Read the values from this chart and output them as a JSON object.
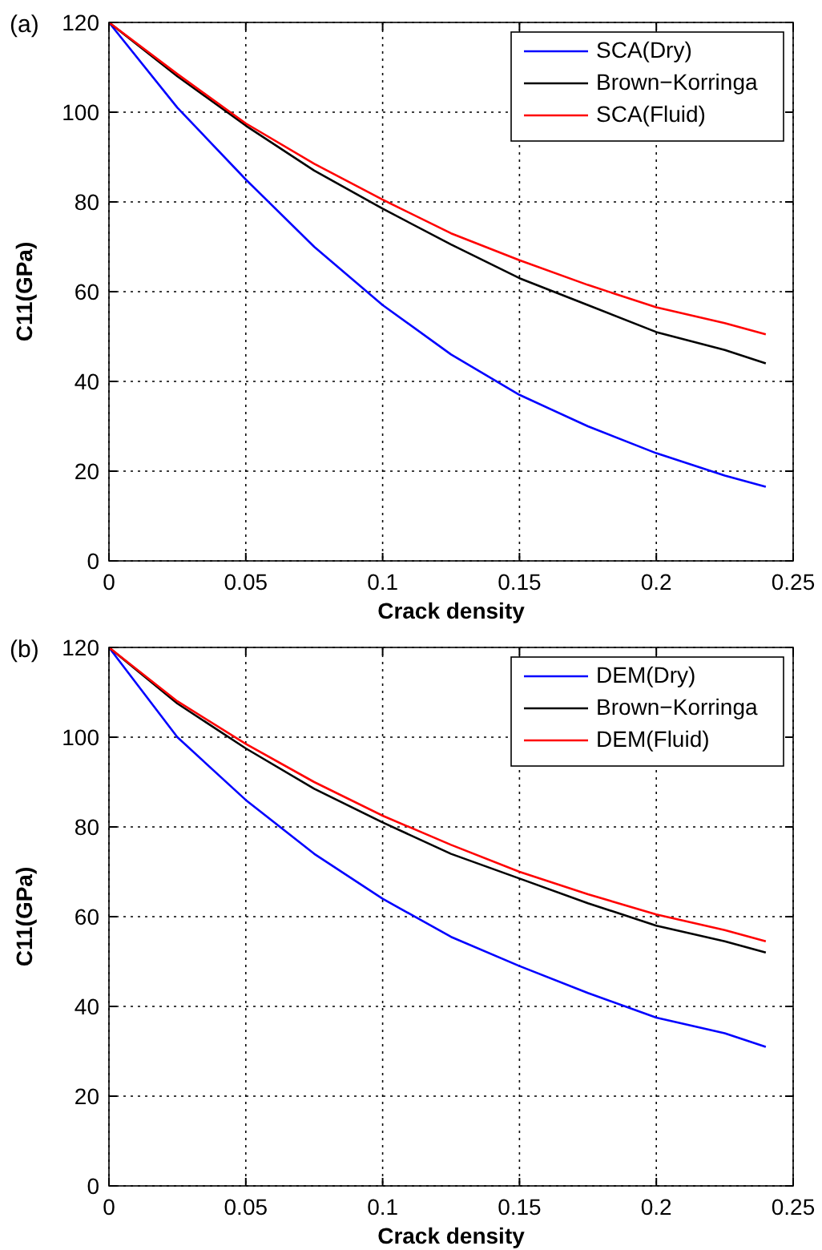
{
  "chart_data": [
    {
      "type": "line",
      "annotations": [
        "(a)"
      ],
      "xlabel": "Crack density",
      "ylabel": "C11(GPa)",
      "x": [
        0,
        0.025,
        0.05,
        0.075,
        0.1,
        0.125,
        0.15,
        0.175,
        0.2,
        0.225,
        0.24
      ],
      "xlim": [
        0,
        0.25
      ],
      "xticks": [
        0,
        0.05,
        0.1,
        0.15,
        0.2,
        0.25
      ],
      "ylim": [
        0,
        120
      ],
      "yticks": [
        0,
        20,
        40,
        60,
        80,
        100,
        120
      ],
      "grid": true,
      "legend": "top right",
      "series": [
        {
          "name": "SCA(Dry)",
          "color": "#0000ff",
          "values": [
            120,
            101,
            85,
            70,
            57,
            46,
            37,
            30,
            24,
            19,
            16.5
          ]
        },
        {
          "name": "Brown−Korringa",
          "color": "#000000",
          "values": [
            120,
            108,
            97,
            87,
            78.5,
            70.5,
            63,
            57,
            51,
            47,
            44
          ]
        },
        {
          "name": "SCA(Fluid)",
          "color": "#ff0000",
          "values": [
            120,
            108.5,
            97.5,
            88.5,
            80.5,
            73,
            67,
            61.5,
            56.5,
            53,
            50.5
          ]
        }
      ]
    },
    {
      "type": "line",
      "annotations": [
        "(b)"
      ],
      "xlabel": "Crack density",
      "ylabel": "C11(GPa)",
      "x": [
        0,
        0.025,
        0.05,
        0.075,
        0.1,
        0.125,
        0.15,
        0.175,
        0.2,
        0.225,
        0.24
      ],
      "xlim": [
        0,
        0.25
      ],
      "xticks": [
        0,
        0.05,
        0.1,
        0.15,
        0.2,
        0.25
      ],
      "ylim": [
        0,
        120
      ],
      "yticks": [
        0,
        20,
        40,
        60,
        80,
        100,
        120
      ],
      "grid": true,
      "legend": "top right",
      "series": [
        {
          "name": "DEM(Dry)",
          "color": "#0000ff",
          "values": [
            120,
            100,
            86,
            74,
            64,
            55.5,
            49,
            43,
            37.5,
            34,
            31
          ]
        },
        {
          "name": "Brown−Korringa",
          "color": "#000000",
          "values": [
            120,
            107.5,
            97.5,
            88.5,
            81,
            74,
            68.5,
            63,
            58,
            54.5,
            52
          ]
        },
        {
          "name": "DEM(Fluid)",
          "color": "#ff0000",
          "values": [
            120,
            108,
            98.5,
            90,
            82.5,
            76,
            70,
            65,
            60.5,
            57,
            54.5
          ]
        }
      ]
    }
  ]
}
